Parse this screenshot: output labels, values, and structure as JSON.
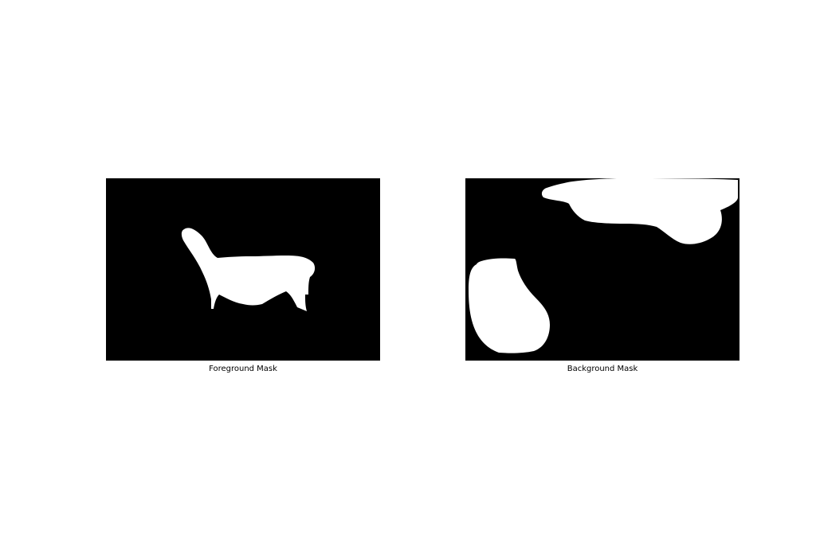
{
  "figure": {
    "panels": [
      {
        "caption": "Foreground Mask",
        "background_color": "#000000",
        "mask_color": "#ffffff"
      },
      {
        "caption": "Background Mask",
        "background_color": "#000000",
        "mask_color": "#ffffff"
      }
    ]
  }
}
